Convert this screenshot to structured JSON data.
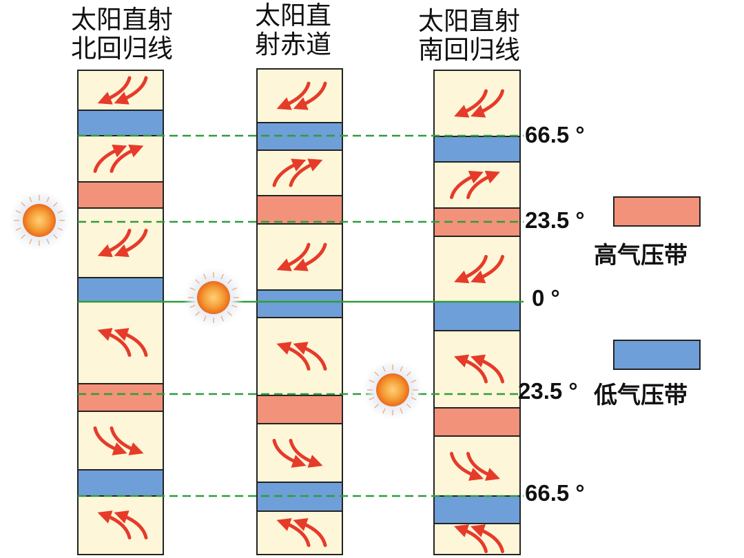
{
  "columns": [
    {
      "title_line1": "太阳直射",
      "title_line2": "北回归线"
    },
    {
      "title_line1": "太阳直",
      "title_line2": "射赤道"
    },
    {
      "title_line1": "太阳直射",
      "title_line2": "南回归线"
    }
  ],
  "latitude_labels": [
    "66.5 °",
    "23.5 °",
    "0 °",
    "23.5 °",
    "66.5 °"
  ],
  "legend": {
    "high_pressure": "高气压带",
    "low_pressure": "低气压带"
  },
  "colors": {
    "cell_background": "#fdf6d8",
    "high_pressure": "#f2927a",
    "low_pressure": "#6f9fd8",
    "wind_arrow": "#e63b2a",
    "latitude_line": "#2f9c3a",
    "sun": "#f07a1e"
  },
  "icons": [
    "sun-icon",
    "wind-arrow-icon"
  ]
}
